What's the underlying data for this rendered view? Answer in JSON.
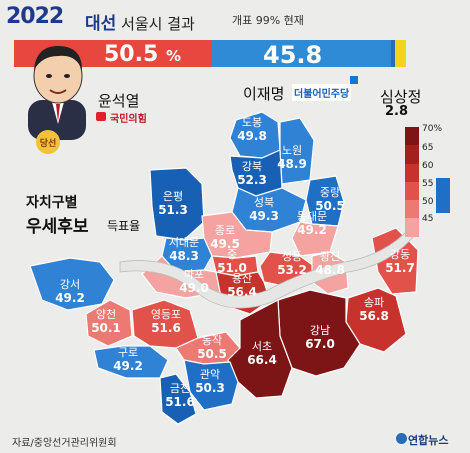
{
  "header": {
    "year": "2022",
    "title_word": "대선",
    "subtitle": "서울시 결과",
    "note": "개표 99% 현재"
  },
  "overall": {
    "yoon": {
      "pct_label": "50.5",
      "pct_unit": "%",
      "value": 50.5,
      "name": "윤석열",
      "party": "국민의힘",
      "badge": "당선",
      "color": "#e8473f"
    },
    "lee": {
      "pct_label": "45.8",
      "value": 45.8,
      "name": "이재명",
      "party": "더불어민주당",
      "color": "#2f8bd6"
    },
    "sim": {
      "pct_label": "2.8",
      "value": 2.8,
      "name": "심상정",
      "color": "#f5d21c"
    },
    "other": {
      "value": 0.9,
      "color": "#2a6bb8"
    }
  },
  "side": {
    "line1": "자치구별",
    "line2": "우세후보",
    "line3": "득표율"
  },
  "legend": {
    "red_ticks": [
      "70%",
      "65",
      "60",
      "55",
      "50",
      "45"
    ],
    "red_colors": [
      "#7d1416",
      "#a3201f",
      "#c8322d",
      "#e1534a",
      "#ed7a72",
      "#f4a3a0"
    ],
    "blue_ticks": [
      "50",
      "45"
    ],
    "blue_color": "#1f6fc6"
  },
  "districts": [
    {
      "name": "도봉",
      "value": "49.8",
      "winner": "lee"
    },
    {
      "name": "노원",
      "value": "48.9",
      "winner": "lee"
    },
    {
      "name": "강북",
      "value": "52.3",
      "winner": "lee"
    },
    {
      "name": "중랑",
      "value": "50.5",
      "winner": "lee"
    },
    {
      "name": "은평",
      "value": "51.3",
      "winner": "lee"
    },
    {
      "name": "성북",
      "value": "49.3",
      "winner": "lee"
    },
    {
      "name": "동대문",
      "value": "49.2",
      "winner": "yoon"
    },
    {
      "name": "종로",
      "value": "49.5",
      "winner": "yoon"
    },
    {
      "name": "서대문",
      "value": "48.3",
      "winner": "lee"
    },
    {
      "name": "중",
      "value": "51.0",
      "winner": "yoon"
    },
    {
      "name": "성동",
      "value": "53.2",
      "winner": "yoon"
    },
    {
      "name": "광진",
      "value": "48.8",
      "winner": "yoon"
    },
    {
      "name": "마포",
      "value": "49.0",
      "winner": "yoon"
    },
    {
      "name": "용산",
      "value": "56.4",
      "winner": "yoon"
    },
    {
      "name": "강동",
      "value": "51.7",
      "winner": "yoon"
    },
    {
      "name": "강서",
      "value": "49.2",
      "winner": "lee"
    },
    {
      "name": "양천",
      "value": "50.1",
      "winner": "yoon"
    },
    {
      "name": "영등포",
      "value": "51.6",
      "winner": "yoon"
    },
    {
      "name": "송파",
      "value": "56.8",
      "winner": "yoon"
    },
    {
      "name": "동작",
      "value": "50.5",
      "winner": "yoon"
    },
    {
      "name": "강남",
      "value": "67.0",
      "winner": "yoon"
    },
    {
      "name": "서초",
      "value": "66.4",
      "winner": "yoon"
    },
    {
      "name": "구로",
      "value": "49.2",
      "winner": "lee"
    },
    {
      "name": "관악",
      "value": "50.3",
      "winner": "lee"
    },
    {
      "name": "금천",
      "value": "51.6",
      "winner": "lee"
    }
  ],
  "source": "자료/중앙선거관리위원회",
  "agency": "연합뉴스"
}
